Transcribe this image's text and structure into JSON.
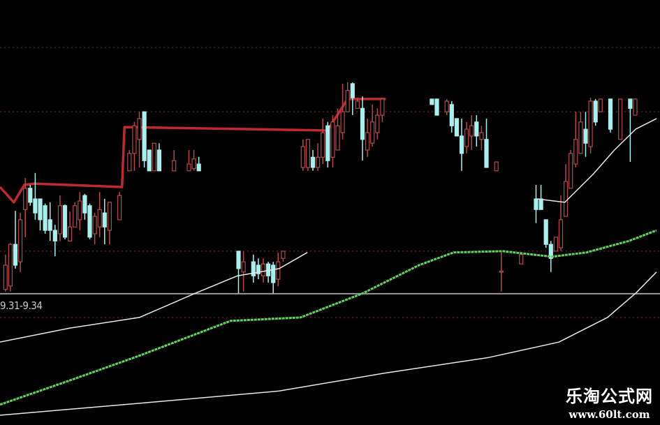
{
  "chart_data": {
    "type": "candlestick",
    "title": "",
    "xlabel": "",
    "ylabel": "",
    "xlim": [
      -1.1,
      132
    ],
    "ylim": [
      0,
      100
    ],
    "grid": true,
    "gridlines_y": [
      88.8,
      73.7,
      40.9,
      25.3
    ],
    "reference_line_y": 30.9,
    "range_label": "9.31-9.34",
    "colors": {
      "up": "#b8484a",
      "down": "#a8f0ee",
      "step_line": "#c0292e",
      "ma_fast": "#e8e8e8",
      "ma_mid": "#5fd35a",
      "ma_slow": "#e8e8e8",
      "grid": "#5a1a1a",
      "reference": "#9a9a9a"
    },
    "candles": [
      [
        0,
        31.9,
        37.6,
        40.1,
        31.4
      ],
      [
        1,
        32.7,
        42.5,
        42.8,
        31.4
      ],
      [
        2,
        42.5,
        37.6,
        50.4,
        36.8
      ],
      [
        3,
        38.4,
        48.3,
        49.9,
        36
      ],
      [
        4,
        50.7,
        55.7,
        58.1,
        44.2
      ],
      [
        5,
        55.7,
        52.4,
        56.5,
        51.6
      ],
      [
        6,
        53.2,
        49.9,
        59.3,
        48.3
      ],
      [
        7,
        53.2,
        48.3,
        53.2,
        45.8
      ],
      [
        8,
        51.6,
        45.8,
        52.1,
        45
      ],
      [
        9,
        48.3,
        45.8,
        52.4,
        43.3
      ],
      [
        10,
        45.8,
        43.3,
        47.1,
        39.7
      ],
      [
        11,
        45,
        51.6,
        54,
        43.3
      ],
      [
        12,
        51.6,
        44.2,
        51.9,
        43.7
      ],
      [
        13,
        43.3,
        46.6,
        50.2,
        43.3
      ],
      [
        14,
        46.6,
        51.6,
        52.4,
        46.6
      ],
      [
        15,
        48.3,
        52.7,
        54.8,
        45.8
      ],
      [
        16,
        54,
        49.9,
        54.4,
        48.3
      ],
      [
        17,
        51.6,
        44.2,
        52.1,
        43.7
      ],
      [
        18,
        45,
        49.1,
        49.9,
        42.5
      ],
      [
        19,
        46.6,
        50.7,
        54.8,
        44.2
      ],
      [
        20,
        49.9,
        46.6,
        53.2,
        42.5
      ],
      [
        21,
        45.8,
        52.4,
        52.4,
        42.5
      ],
      [
        23,
        48.3,
        54,
        54.8,
        48.3
      ],
      [
        25,
        59.8,
        63.9,
        64.7,
        59.8
      ],
      [
        26,
        63.9,
        70.4,
        71.3,
        59.8
      ],
      [
        27,
        67.2,
        72.1,
        73.7,
        60.6
      ],
      [
        28,
        73.7,
        62.2,
        73.7,
        60.6
      ],
      [
        29,
        64.7,
        59.8,
        64.7,
        59.8
      ],
      [
        30,
        59.8,
        66.3,
        66.3,
        59.8
      ],
      [
        31,
        64.7,
        59.8,
        66.3,
        59.8
      ],
      [
        34,
        59.8,
        62.2,
        64.7,
        59.8
      ],
      [
        37,
        59.8,
        61.4,
        64.7,
        59.8
      ],
      [
        38,
        60.3,
        62.6,
        64.7,
        59.8
      ],
      [
        39,
        61.4,
        59.8,
        63.1,
        59.8
      ],
      [
        47,
        40.9,
        36.8,
        40.9,
        31
      ],
      [
        48,
        36,
        38.4,
        40.9,
        31.4
      ],
      [
        50,
        38.4,
        35.1,
        40.1,
        33.5
      ],
      [
        51,
        37.6,
        35.6,
        39.2,
        34.3
      ],
      [
        52,
        35.1,
        37.9,
        39.2,
        33.5
      ],
      [
        53,
        37.9,
        35.1,
        38.4,
        33.5
      ],
      [
        54,
        37.6,
        33.5,
        38.4,
        31
      ],
      [
        55,
        34.3,
        38.4,
        40.6,
        32.7
      ],
      [
        56,
        39.2,
        40.9,
        40.9,
        38.4
      ],
      [
        60,
        60.6,
        65.5,
        67.2,
        59.8
      ],
      [
        61,
        60.6,
        67.2,
        67.2,
        59.8
      ],
      [
        62,
        63,
        60.6,
        64.7,
        59.8
      ],
      [
        63,
        60.6,
        63,
        66.3,
        59.8
      ],
      [
        64,
        63,
        68.8,
        72.1,
        61.4
      ],
      [
        65,
        70.4,
        62.2,
        71.3,
        60.6
      ],
      [
        66,
        63,
        71.3,
        72.9,
        60.6
      ],
      [
        67,
        64.7,
        70.4,
        74.5,
        64.7
      ],
      [
        68,
        68.8,
        73.7,
        80.3,
        67.2
      ],
      [
        69,
        73.7,
        78.7,
        80.6,
        73.7
      ],
      [
        70,
        80.3,
        77,
        80.6,
        72.9
      ],
      [
        71,
        74.5,
        76.2,
        77,
        74.5
      ],
      [
        72,
        74.5,
        67.2,
        77.3,
        62.2
      ],
      [
        73,
        64.7,
        68.8,
        72.1,
        63.1
      ],
      [
        74,
        66.3,
        71.3,
        75.4,
        65.5
      ],
      [
        75,
        68.8,
        72.9,
        74.5,
        67.2
      ],
      [
        76,
        72.9,
        76.7,
        76.7,
        71.3
      ],
      [
        86,
        76.7,
        75.4,
        76.7,
        75.4
      ],
      [
        87,
        76.7,
        72.9,
        76.7,
        72.9
      ],
      [
        89,
        73.7,
        76.2,
        76.7,
        72.9
      ],
      [
        90,
        75.4,
        70.4,
        76.2,
        68.8
      ],
      [
        91,
        72.1,
        68,
        72.1,
        68
      ],
      [
        92,
        68,
        63.9,
        72.1,
        59.8
      ],
      [
        93,
        65.5,
        69.6,
        71.3,
        63.9
      ],
      [
        94,
        68,
        70.4,
        72.9,
        64.7
      ],
      [
        95,
        71.3,
        68,
        72.9,
        65.5
      ],
      [
        96,
        67.2,
        68.8,
        70.4,
        64.7
      ],
      [
        97,
        67.2,
        60.6,
        72.1,
        60.6
      ],
      [
        99,
        59.8,
        61.9,
        61.9,
        59.8
      ],
      [
        100,
        36,
        36.2,
        40.9,
        31.4
      ],
      [
        104,
        37.9,
        40.1,
        40.1,
        37.9
      ],
      [
        107,
        53.2,
        50.7,
        56.5,
        47.5
      ],
      [
        108,
        53.2,
        50.7,
        56.5,
        50.7
      ],
      [
        109,
        48.3,
        42.5,
        48.3,
        41.7
      ],
      [
        110,
        42.5,
        39.2,
        43.3,
        36
      ],
      [
        111,
        40.9,
        44.2,
        44.2,
        40.9
      ],
      [
        112,
        41.7,
        48.3,
        54,
        40.9
      ],
      [
        113,
        49.1,
        57.3,
        61.4,
        49.1
      ],
      [
        114,
        55.7,
        63.9,
        64.7,
        55.7
      ],
      [
        115,
        61.4,
        67.2,
        73.7,
        60.6
      ],
      [
        116,
        63.9,
        71.3,
        73.7,
        63.9
      ],
      [
        117,
        69.6,
        66.3,
        73.7,
        63.1
      ],
      [
        118,
        65.5,
        76.2,
        77,
        63.9
      ],
      [
        119,
        76.2,
        71.3,
        76.7,
        70.4
      ],
      [
        120,
        73.7,
        76.7,
        76.7,
        73.7
      ],
      [
        122,
        76.7,
        69.6,
        76.7,
        68.8
      ],
      [
        124,
        67.2,
        76.7,
        76.7,
        67.2
      ],
      [
        126,
        76.7,
        74.5,
        76.7,
        61.9
      ],
      [
        127,
        72.9,
        76.7,
        76.7,
        72.9
      ]
    ],
    "series": [
      {
        "key": "step_line",
        "points": [
          [
            -1.1,
            56
          ],
          [
            1.7,
            52.4
          ],
          [
            3.8,
            56.5
          ],
          [
            5.8,
            56.8
          ],
          [
            23.5,
            56
          ],
          [
            24,
            70.1
          ],
          [
            64.9,
            69.3
          ],
          [
            69,
            76.7
          ],
          [
            76.7,
            76.7
          ]
        ]
      },
      {
        "key": "ma_fast",
        "points": [
          [
            -1.1,
            19.5
          ],
          [
            13,
            22.8
          ],
          [
            27,
            25.3
          ],
          [
            38.3,
            31
          ],
          [
            46.8,
            35.1
          ],
          [
            55.2,
            36.8
          ],
          [
            60.9,
            40.6
          ],
          null,
          [
            107.2,
            53.2
          ],
          [
            112.8,
            52.4
          ],
          [
            118.5,
            59
          ],
          [
            122.8,
            64.7
          ],
          [
            127.1,
            69.6
          ],
          [
            131.3,
            72.1
          ]
        ]
      },
      {
        "key": "ma_mid",
        "points": [
          [
            -1.1,
            4.8
          ],
          [
            13,
            10.5
          ],
          [
            27,
            16.3
          ],
          [
            45.4,
            24.5
          ],
          [
            59.5,
            25.3
          ],
          [
            72.1,
            31
          ],
          [
            83.4,
            37.6
          ],
          [
            90.4,
            40.6
          ],
          [
            100.3,
            40.9
          ],
          [
            110.2,
            39.6
          ],
          [
            117.2,
            40.6
          ],
          [
            125.7,
            43.3
          ],
          [
            131.3,
            45.8
          ]
        ]
      },
      {
        "key": "ma_slow",
        "points": [
          [
            -1.1,
            2.3
          ],
          [
            27,
            5.1
          ],
          [
            55.2,
            8
          ],
          [
            76.4,
            12.2
          ],
          [
            97.5,
            15.9
          ],
          [
            111.6,
            19.5
          ],
          [
            121.4,
            25.3
          ],
          [
            127.1,
            31
          ],
          [
            131.3,
            36
          ]
        ]
      }
    ]
  },
  "watermark": {
    "name": "乐淘公式网",
    "url": "www.60lt.com"
  }
}
